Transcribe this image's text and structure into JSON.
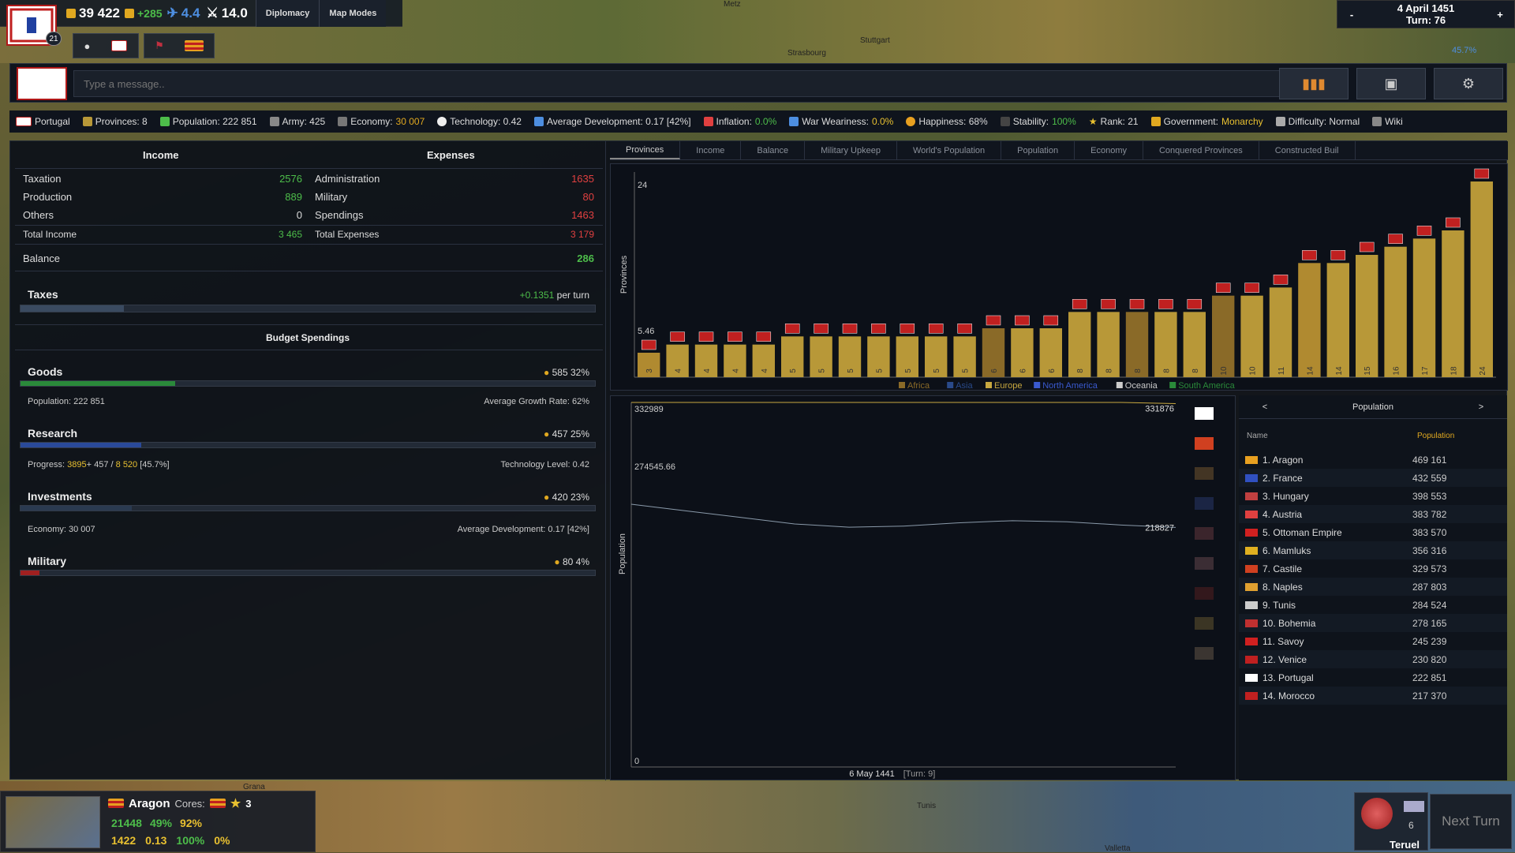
{
  "top": {
    "badge": "21",
    "gold": "39 422",
    "income": "+285",
    "manpower": "4.4",
    "mil": "14.0",
    "diplomacy": "Diplomacy",
    "map_modes": "Map Modes",
    "date": "4 April 1451",
    "turn": "Turn: 76",
    "minus": "-",
    "plus": "+",
    "progress": "45.7%"
  },
  "map_labels": [
    "Metz",
    "Strasbourg",
    "Stuttgart",
    "Grana",
    "Tunis",
    "Valletta",
    "Teruel"
  ],
  "message": {
    "placeholder": "Type a message.."
  },
  "info": {
    "country": "Portugal",
    "provinces": "Provinces: 8",
    "population": "Population: 222 851",
    "army": "Army: 425",
    "economy_label": "Economy:",
    "economy": "30 007",
    "technology": "Technology: 0.42",
    "avg_dev": "Average Development: 0.17 [42%]",
    "inflation_label": "Inflation:",
    "inflation": "0.0%",
    "war_label": "War Weariness:",
    "war": "0.0%",
    "happiness": "Happiness: 68%",
    "stability_label": "Stability:",
    "stability": "100%",
    "rank": "Rank: 21",
    "government_label": "Government:",
    "government": "Monarchy",
    "difficulty": "Difficulty: Normal",
    "wiki": "Wiki"
  },
  "budget": {
    "income_hdr": "Income",
    "expenses_hdr": "Expenses",
    "rows": [
      {
        "l": "Taxation",
        "lv": "2576",
        "r": "Administration",
        "rv": "1635"
      },
      {
        "l": "Production",
        "lv": "889",
        "r": "Military",
        "rv": "80"
      },
      {
        "l": "Others",
        "lv": "0",
        "r": "Spendings",
        "rv": "1463"
      }
    ],
    "total_income_label": "Total Income",
    "total_income": "3 465",
    "total_expenses_label": "Total Expenses",
    "total_expenses": "3 179",
    "balance_label": "Balance",
    "balance": "286",
    "taxes_label": "Taxes",
    "taxes_value": "+0.1351",
    "per_turn": "per turn",
    "spendings_hdr": "Budget Spendings",
    "goods": {
      "label": "Goods",
      "value": "585",
      "pct": "32%",
      "fill": 0.32
    },
    "goods_pop": "Population: 222 851",
    "goods_growth": "Average Growth Rate: 62%",
    "research": {
      "label": "Research",
      "value": "457",
      "pct": "25%",
      "fill": 0.25
    },
    "research_progress_label": "Progress:",
    "research_progress": "3895",
    "research_plus": "+ 457 /",
    "research_total": "8 520",
    "research_pct": "[45.7%]",
    "tech_level": "Technology Level: 0.42",
    "investments": {
      "label": "Investments",
      "value": "420",
      "pct": "23%",
      "fill": 0.23
    },
    "inv_economy": "Economy: 30 007",
    "inv_dev": "Average Development: 0.17 [42%]",
    "military": {
      "label": "Military",
      "value": "80",
      "pct": "4%",
      "fill": 0.04
    }
  },
  "tabs": [
    "Provinces",
    "Income",
    "Balance",
    "Military Upkeep",
    "World's Population",
    "Population",
    "Economy",
    "Conquered Provinces",
    "Constructed Buil"
  ],
  "chart_data": [
    {
      "type": "bar",
      "ylabel": "Provinces",
      "yticks": [
        "24",
        "5.46"
      ],
      "ylim": [
        0,
        24
      ],
      "values": [
        3,
        4,
        4,
        4,
        4,
        5,
        5,
        5,
        5,
        5,
        5,
        5,
        6,
        6,
        6,
        8,
        8,
        8,
        8,
        8,
        10,
        10,
        11,
        14,
        14,
        15,
        16,
        17,
        18,
        24
      ],
      "colors": [
        "#b08a30",
        "#b89838",
        "#b89838",
        "#b89838",
        "#b89838",
        "#b89838",
        "#b89838",
        "#b89838",
        "#b89838",
        "#b89838",
        "#b89838",
        "#b89838",
        "#8a6a28",
        "#b89838",
        "#b89838",
        "#b89838",
        "#b89838",
        "#8a6a28",
        "#b89838",
        "#b89838",
        "#8a6a28",
        "#b89838",
        "#b89838",
        "#b08a30",
        "#b89838",
        "#b89838",
        "#b89838",
        "#b89838",
        "#b89838",
        "#b89838"
      ],
      "legend": [
        {
          "name": "Africa",
          "color": "#8a6a28"
        },
        {
          "name": "Asia",
          "color": "#2a4a8a"
        },
        {
          "name": "Europe",
          "color": "#c8a840"
        },
        {
          "name": "North America",
          "color": "#3a5ad0"
        },
        {
          "name": "Oceania",
          "color": "#cccccc"
        },
        {
          "name": "South America",
          "color": "#2a8a3a"
        }
      ]
    },
    {
      "type": "line",
      "ylabel": "Population",
      "yticks": [
        "332989",
        "274545.66",
        "0"
      ],
      "ylim": [
        0,
        332989
      ],
      "x_label": "6 May 1441",
      "x_turn": "[Turn: 9]",
      "series_end_labels": [
        "331876",
        "218827"
      ],
      "series": [
        {
          "values": [
            332989,
            332989,
            332989,
            332989,
            332989,
            332989,
            332989,
            332989,
            332989,
            332989,
            331876
          ],
          "color": "#c8a840"
        },
        {
          "values": [
            240000,
            234000,
            228000,
            222000,
            219000,
            220000,
            223000,
            225000,
            224000,
            221000,
            218827
          ],
          "color": "#8a9aaa"
        }
      ]
    }
  ],
  "pop_table": {
    "prev": "<",
    "next": ">",
    "title": "Population",
    "col_name": "Name",
    "col_value": "Population",
    "rows": [
      {
        "n": "1. Aragon",
        "v": "469 161",
        "c": "#e8a020"
      },
      {
        "n": "2. France",
        "v": "432 559",
        "c": "#3050c0"
      },
      {
        "n": "3. Hungary",
        "v": "398 553",
        "c": "#c04040"
      },
      {
        "n": "4. Austria",
        "v": "383 782",
        "c": "#e04040"
      },
      {
        "n": "5. Ottoman Empire",
        "v": "383 570",
        "c": "#d02020"
      },
      {
        "n": "6. Mamluks",
        "v": "356 316",
        "c": "#e0b020"
      },
      {
        "n": "7. Castile",
        "v": "329 573",
        "c": "#d04020"
      },
      {
        "n": "8. Naples",
        "v": "287 803",
        "c": "#e0a030"
      },
      {
        "n": "9. Tunis",
        "v": "284 524",
        "c": "#cccccc"
      },
      {
        "n": "10. Bohemia",
        "v": "278 165",
        "c": "#c03030"
      },
      {
        "n": "11. Savoy",
        "v": "245 239",
        "c": "#d02020"
      },
      {
        "n": "12. Venice",
        "v": "230 820",
        "c": "#c02020"
      },
      {
        "n": "13. Portugal",
        "v": "222 851",
        "c": "#ffffff"
      },
      {
        "n": "14. Morocco",
        "v": "217 370",
        "c": "#c02020"
      }
    ]
  },
  "bottom": {
    "country": "Aragon",
    "cores": "Cores:",
    "rank": "3",
    "pop": "21448",
    "growth": "49%",
    "happy": "92%",
    "army": "1422",
    "dev": "0.13",
    "stab": "100%",
    "unrest": "0%",
    "count": "6",
    "city": "Teruel",
    "next_turn": "Next Turn"
  }
}
